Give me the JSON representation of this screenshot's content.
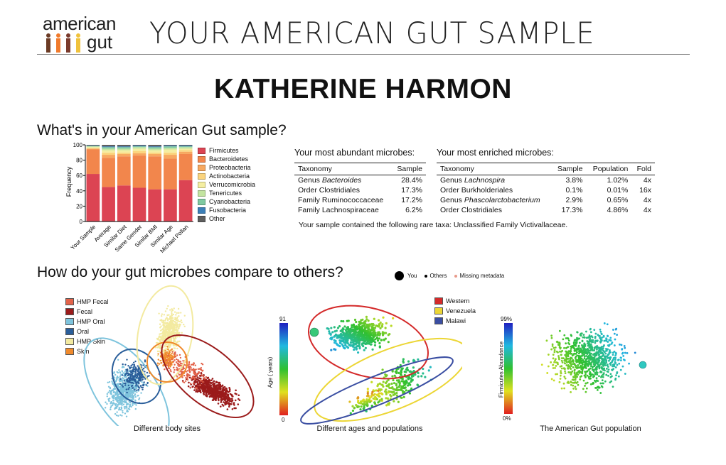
{
  "header": {
    "logo_top": "american",
    "logo_bottom": "gut",
    "title": "YOUR AMERICAN GUT SAMPLE"
  },
  "participant": {
    "name": "KATHERINE HARMON"
  },
  "section1": {
    "heading": "What's in your American Gut sample?",
    "abundant": {
      "title": "Your most abundant microbes:",
      "columns": [
        "Taxonomy",
        "Sample"
      ],
      "rows": [
        {
          "rank": "Genus",
          "taxon": "Bacteroides",
          "italic": true,
          "sample": "28.4%"
        },
        {
          "rank": "Order",
          "taxon": "Clostridiales",
          "italic": false,
          "sample": "17.3%"
        },
        {
          "rank": "Family",
          "taxon": "Ruminococcaceae",
          "italic": false,
          "sample": "17.2%"
        },
        {
          "rank": "Family",
          "taxon": "Lachnospiraceae",
          "italic": false,
          "sample": "6.2%"
        }
      ]
    },
    "enriched": {
      "title": "Your most enriched microbes:",
      "columns": [
        "Taxonomy",
        "Sample",
        "Population",
        "Fold"
      ],
      "rows": [
        {
          "rank": "Genus",
          "taxon": "Lachnospira",
          "italic": true,
          "sample": "3.8%",
          "population": "1.02%",
          "fold": "4x"
        },
        {
          "rank": "Order",
          "taxon": "Burkholderiales",
          "italic": false,
          "sample": "0.1%",
          "population": "0.01%",
          "fold": "16x"
        },
        {
          "rank": "Genus",
          "taxon": "Phascolarctobacterium",
          "italic": true,
          "sample": "2.9%",
          "population": "0.65%",
          "fold": "4x"
        },
        {
          "rank": "Order",
          "taxon": "Clostridiales",
          "italic": false,
          "sample": "17.3%",
          "population": "4.86%",
          "fold": "4x"
        }
      ]
    },
    "rare_taxa_note": "Your sample contained the following rare taxa: Unclassified Family Victivallaceae."
  },
  "section2": {
    "heading": "How do your gut microbes compare to others?",
    "key": [
      {
        "label": "You",
        "color": "#000000"
      },
      {
        "label": "Others",
        "color": "#000000"
      },
      {
        "label": "Missing metadata",
        "color": "#e89a8a"
      }
    ],
    "bodysites": {
      "caption": "Different body sites",
      "legend": [
        {
          "label": "HMP Fecal",
          "color": "#e3634a"
        },
        {
          "label": "Fecal",
          "color": "#9b1b1b"
        },
        {
          "label": "HMP Oral",
          "color": "#7ec4dd"
        },
        {
          "label": "Oral",
          "color": "#2a5e9a"
        },
        {
          "label": "HMP Skin",
          "color": "#f3eaa0"
        },
        {
          "label": "Skin",
          "color": "#f08a2c"
        }
      ]
    },
    "ages": {
      "caption": "Different ages and populations",
      "axis_label": "Age ( years)",
      "scale_max": "91",
      "scale_min": "0",
      "legend": [
        {
          "label": "Western",
          "color": "#d42a2a"
        },
        {
          "label": "Venezuela",
          "color": "#ecd635"
        },
        {
          "label": "Malawi",
          "color": "#3a4ea2"
        }
      ]
    },
    "population": {
      "caption": "The American Gut population",
      "axis_label": "Firmicutes Abundance",
      "scale_max": "99%",
      "scale_min": "0%"
    }
  },
  "chart_data": {
    "type": "bar",
    "stacked": true,
    "ylabel": "Frequency",
    "ylim": [
      0,
      100
    ],
    "yticks": [
      "0",
      "20",
      "40",
      "60",
      "80",
      "100"
    ],
    "categories": [
      "Your Sample",
      "Average",
      "Similar Diet",
      "Same Gender",
      "Similar BMI",
      "Similar Age",
      "Michael Pollan"
    ],
    "legend_position": "right",
    "series": [
      {
        "name": "Firmicutes",
        "color": "#dc4453",
        "values": [
          62,
          45,
          47,
          44,
          42,
          42,
          54
        ]
      },
      {
        "name": "Bacteroidetes",
        "color": "#f2864c",
        "values": [
          32,
          38,
          38,
          42,
          43,
          40,
          34
        ]
      },
      {
        "name": "Proteobacteria",
        "color": "#f7a860",
        "values": [
          1,
          4,
          3,
          3,
          3,
          5,
          3
        ]
      },
      {
        "name": "Actinobacteria",
        "color": "#fbd47d",
        "values": [
          1,
          3,
          2,
          3,
          2,
          3,
          2
        ]
      },
      {
        "name": "Verrucomicrobia",
        "color": "#f4eea1",
        "values": [
          1,
          3,
          3,
          3,
          3,
          4,
          2
        ]
      },
      {
        "name": "Tenericutes",
        "color": "#c3e4a0",
        "values": [
          1,
          2,
          2,
          2,
          2,
          2,
          2
        ]
      },
      {
        "name": "Cyanobacteria",
        "color": "#7fc9a1",
        "values": [
          0.5,
          2,
          2,
          1,
          2,
          2,
          1
        ]
      },
      {
        "name": "Fusobacteria",
        "color": "#3b7fb8",
        "values": [
          0.5,
          1,
          1,
          1,
          1,
          1,
          1
        ]
      },
      {
        "name": "Other",
        "color": "#5e5e5e",
        "values": [
          1,
          2,
          2,
          1,
          2,
          1,
          1
        ]
      }
    ]
  }
}
